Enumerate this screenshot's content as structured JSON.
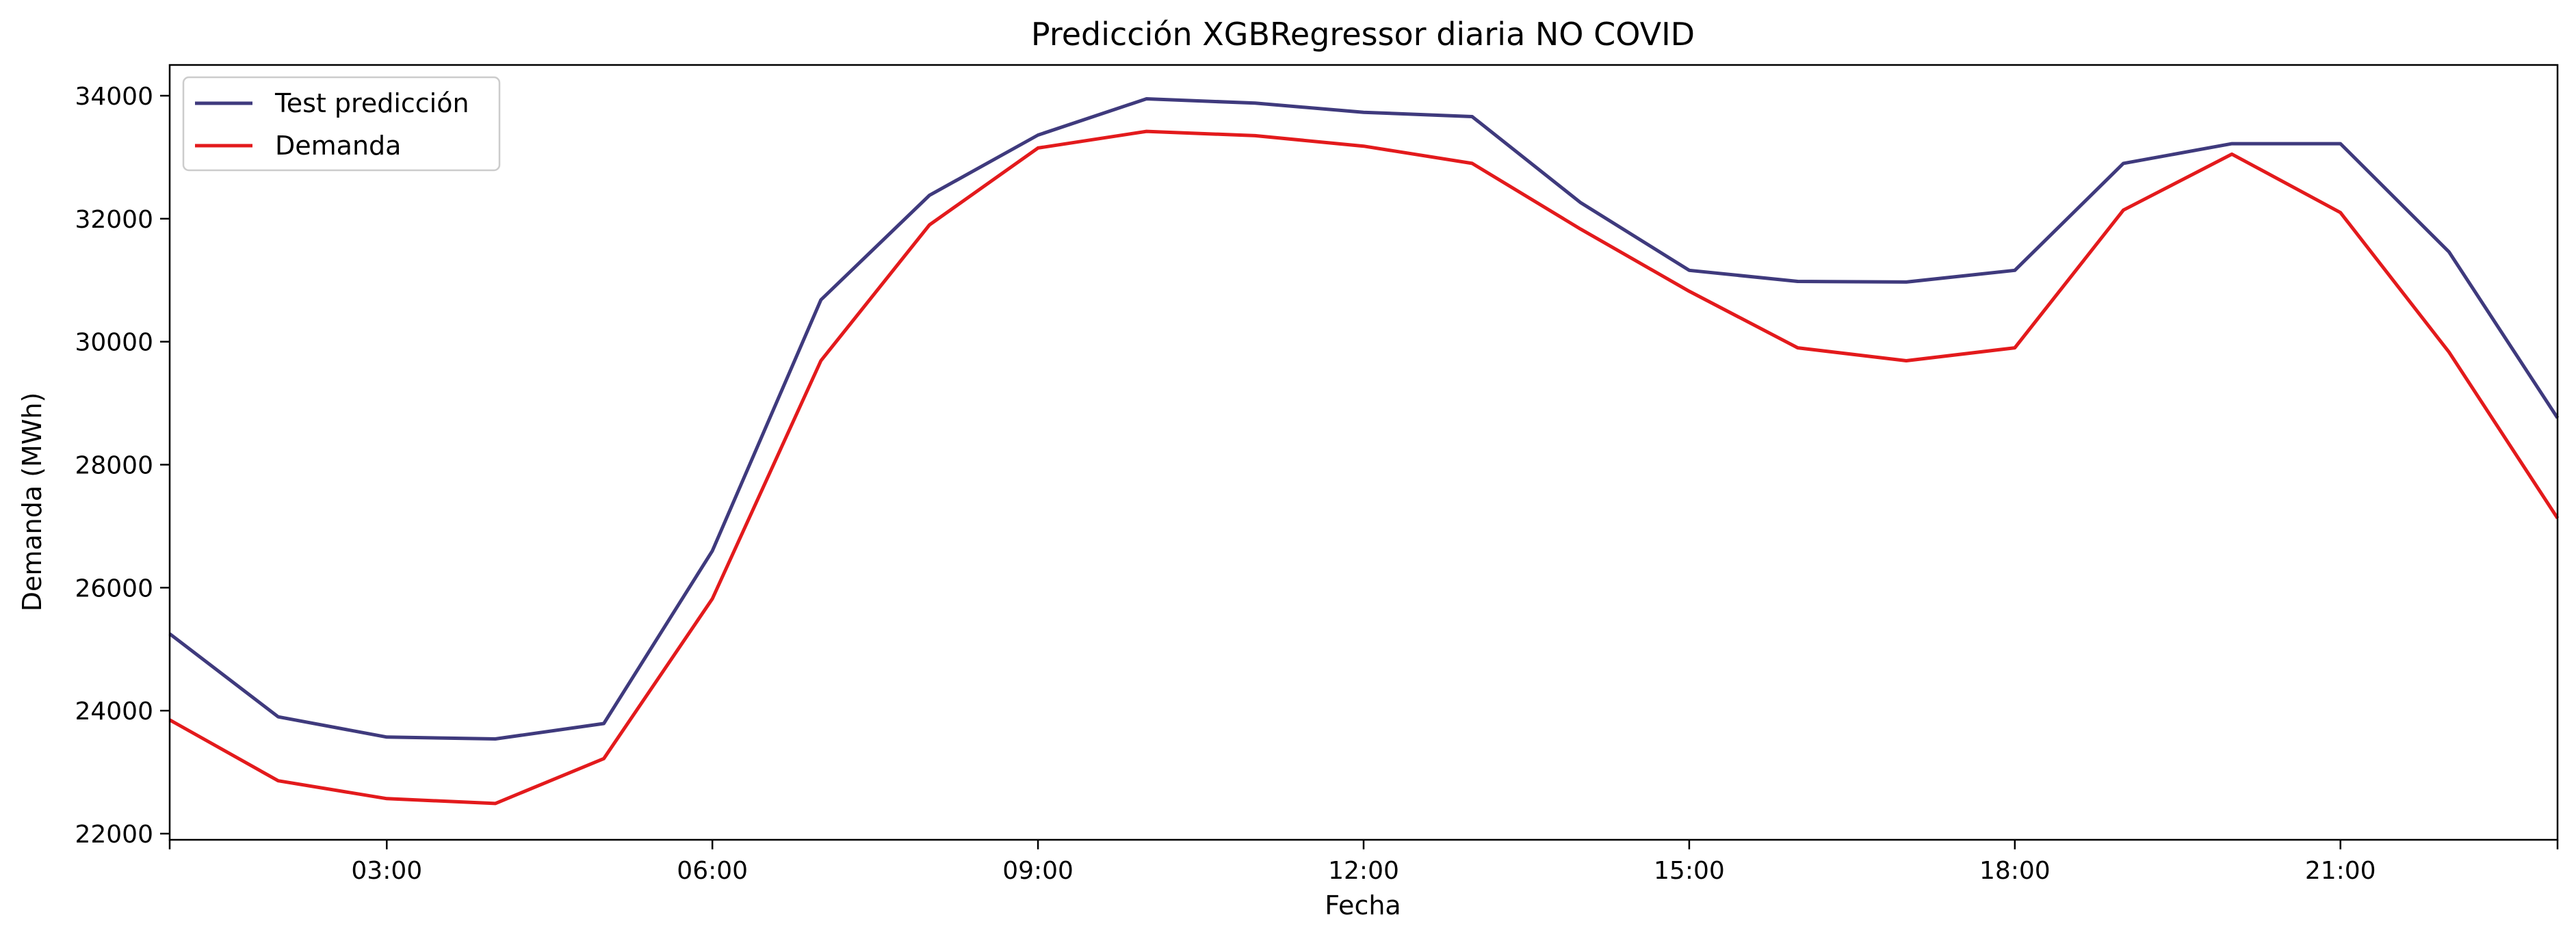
{
  "chart_data": {
    "type": "line",
    "title": "Predicción XGBRegressor diaria NO COVID",
    "xlabel": "Fecha",
    "ylabel": "Demanda (MWh)",
    "x": [
      "01:00",
      "02:00",
      "03:00",
      "04:00",
      "05:00",
      "06:00",
      "07:00",
      "08:00",
      "09:00",
      "10:00",
      "11:00",
      "12:00",
      "13:00",
      "14:00",
      "15:00",
      "16:00",
      "17:00",
      "18:00",
      "19:00",
      "20:00",
      "21:00",
      "22:00",
      "23:00"
    ],
    "xticks": [
      "03:00",
      "06:00",
      "09:00",
      "12:00",
      "15:00",
      "18:00",
      "21:00"
    ],
    "xlim": [
      1,
      23
    ],
    "ylim": [
      21900,
      34500
    ],
    "yticks": [
      22000,
      24000,
      26000,
      28000,
      30000,
      32000,
      34000
    ],
    "grid": false,
    "legend_position": "top-left",
    "series": [
      {
        "name": "Test predicción",
        "color": "#3f3a7d",
        "values": [
          25250,
          23900,
          23570,
          23540,
          23790,
          26600,
          30680,
          32380,
          33360,
          33950,
          33880,
          33730,
          33660,
          32260,
          31160,
          30980,
          30970,
          31160,
          32900,
          33220,
          33220,
          31460,
          28760
        ]
      },
      {
        "name": "Demanda",
        "color": "#e31a1c",
        "values": [
          23850,
          22860,
          22570,
          22490,
          23220,
          25820,
          29690,
          31900,
          33150,
          33420,
          33350,
          33180,
          32900,
          31830,
          30820,
          29900,
          29690,
          29900,
          32140,
          33050,
          32100,
          29830,
          27130
        ]
      }
    ]
  }
}
